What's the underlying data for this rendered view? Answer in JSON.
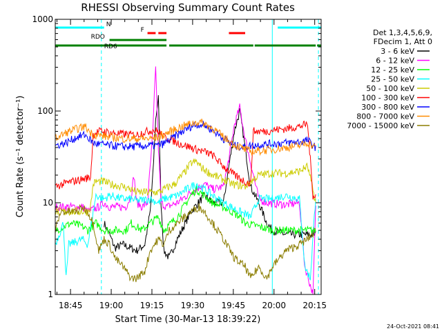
{
  "chart_data": {
    "type": "line",
    "title": "RHESSI Observing Summary Count Rates",
    "xlabel": "Start Time (30-Mar-13 18:39:22)",
    "ylabel": "Count Rate (s⁻¹ detector⁻¹)",
    "ylim": [
      1,
      1000
    ],
    "yscale": "log",
    "x_range_minutes": [
      0,
      98
    ],
    "x_ticks": [
      {
        "minute": 5.63,
        "label": "18:45"
      },
      {
        "minute": 20.63,
        "label": "19:00"
      },
      {
        "minute": 35.63,
        "label": "19:15"
      },
      {
        "minute": 50.63,
        "label": "19:30"
      },
      {
        "minute": 65.63,
        "label": "19:45"
      },
      {
        "minute": 80.63,
        "label": "20:00"
      },
      {
        "minute": 95.63,
        "label": "20:15"
      }
    ],
    "y_ticks": [
      {
        "value": 1,
        "label": "1"
      },
      {
        "value": 10,
        "label": "10"
      },
      {
        "value": 100,
        "label": "100"
      },
      {
        "value": 1000,
        "label": "1000"
      }
    ],
    "legend": {
      "position": "right",
      "header": [
        "Det 1,3,4,5,6,9,",
        "FDecim 1, Att 0"
      ],
      "entries": [
        {
          "label": "3 - 6 keV",
          "color": "#000000"
        },
        {
          "label": "6 - 12 keV",
          "color": "#ff00ff"
        },
        {
          "label": "12 - 25 keV",
          "color": "#00ff00"
        },
        {
          "label": "25 - 50 keV",
          "color": "#00ffff"
        },
        {
          "label": "50 - 100 keV",
          "color": "#cccc00"
        },
        {
          "label": "100 - 300 keV",
          "color": "#ff0000"
        },
        {
          "label": "300 - 800 keV",
          "color": "#0000ff"
        },
        {
          "label": "800 - 7000 keV",
          "color": "#ff8c00"
        },
        {
          "label": "7000 - 15000 keV",
          "color": "#8b7d00"
        }
      ]
    },
    "series": [
      {
        "name": "3 - 6 keV",
        "color": "#000000",
        "points": [
          [
            18,
            6
          ],
          [
            20,
            4.5
          ],
          [
            22,
            3.2
          ],
          [
            25,
            3.5
          ],
          [
            30,
            3
          ],
          [
            33,
            3.5
          ],
          [
            35,
            8
          ],
          [
            36,
            20
          ],
          [
            37,
            80
          ],
          [
            38,
            140
          ],
          [
            39,
            10
          ],
          [
            40,
            3
          ],
          [
            42,
            2.5
          ],
          [
            45,
            4
          ],
          [
            50,
            8
          ],
          [
            55,
            12
          ],
          [
            58,
            10
          ],
          [
            62,
            10
          ],
          [
            64,
            25
          ],
          [
            66,
            60
          ],
          [
            68,
            100
          ],
          [
            70,
            40
          ],
          [
            72,
            15
          ],
          [
            75,
            10
          ],
          [
            78,
            6
          ],
          [
            80,
            5
          ],
          [
            85,
            4.5
          ],
          [
            92,
            4.5
          ],
          [
            96,
            4.5
          ]
        ]
      },
      {
        "name": "6 - 12 keV",
        "color": "#ff00ff",
        "points": [
          [
            0,
            9
          ],
          [
            10,
            9
          ],
          [
            12,
            8
          ],
          [
            16,
            9
          ],
          [
            18,
            10
          ],
          [
            20,
            9
          ],
          [
            26,
            9
          ],
          [
            28,
            12
          ],
          [
            29,
            20
          ],
          [
            30,
            10
          ],
          [
            32,
            9
          ],
          [
            34,
            10
          ],
          [
            36,
            60
          ],
          [
            37,
            320
          ],
          [
            38,
            40
          ],
          [
            39,
            10
          ],
          [
            41,
            9
          ],
          [
            45,
            10
          ],
          [
            50,
            13
          ],
          [
            55,
            16
          ],
          [
            58,
            14
          ],
          [
            62,
            15
          ],
          [
            64,
            30
          ],
          [
            66,
            70
          ],
          [
            68,
            110
          ],
          [
            70,
            50
          ],
          [
            73,
            20
          ],
          [
            75,
            11
          ],
          [
            78,
            10
          ],
          [
            85,
            9.5
          ],
          [
            90,
            10
          ],
          [
            92,
            2
          ],
          [
            95,
            1
          ],
          [
            96,
            9
          ]
        ]
      },
      {
        "name": "12 - 25 keV",
        "color": "#00ff00",
        "points": [
          [
            0,
            5
          ],
          [
            6,
            6
          ],
          [
            10,
            5.5
          ],
          [
            12,
            5
          ],
          [
            15,
            6
          ],
          [
            18,
            5
          ],
          [
            20,
            5
          ],
          [
            26,
            5
          ],
          [
            28,
            6
          ],
          [
            32,
            5
          ],
          [
            35,
            6
          ],
          [
            38,
            7
          ],
          [
            40,
            5
          ],
          [
            45,
            7
          ],
          [
            50,
            12
          ],
          [
            52,
            14
          ],
          [
            55,
            12
          ],
          [
            58,
            10
          ],
          [
            62,
            9
          ],
          [
            65,
            8
          ],
          [
            68,
            7
          ],
          [
            70,
            6
          ],
          [
            75,
            5.5
          ],
          [
            80,
            5
          ],
          [
            85,
            5
          ],
          [
            92,
            5
          ],
          [
            96,
            5
          ]
        ]
      },
      {
        "name": "25 - 50 keV",
        "color": "#00ffff",
        "points": [
          [
            0,
            3.5
          ],
          [
            3,
            6
          ],
          [
            4,
            1.5
          ],
          [
            5,
            3.5
          ],
          [
            8,
            3.8
          ],
          [
            10,
            4
          ],
          [
            12,
            3.5
          ],
          [
            15,
            12
          ],
          [
            18,
            11
          ],
          [
            20,
            12
          ],
          [
            25,
            11
          ],
          [
            28,
            11
          ],
          [
            30,
            10.5
          ],
          [
            35,
            11
          ],
          [
            38,
            10
          ],
          [
            40,
            11
          ],
          [
            45,
            12
          ],
          [
            50,
            15
          ],
          [
            52,
            16
          ],
          [
            55,
            14
          ],
          [
            58,
            12
          ],
          [
            62,
            10
          ],
          [
            68,
            8
          ],
          [
            72,
            7
          ],
          [
            75,
            11
          ],
          [
            80,
            11
          ],
          [
            85,
            12
          ],
          [
            90,
            11
          ],
          [
            92,
            2
          ],
          [
            94,
            1.5
          ],
          [
            96,
            12
          ]
        ]
      },
      {
        "name": "50 - 100 keV",
        "color": "#cccc00",
        "points": [
          [
            0,
            8
          ],
          [
            10,
            8
          ],
          [
            12,
            8
          ],
          [
            13,
            9
          ],
          [
            14,
            16
          ],
          [
            15,
            17
          ],
          [
            18,
            17
          ],
          [
            20,
            16
          ],
          [
            25,
            15
          ],
          [
            28,
            14
          ],
          [
            30,
            13
          ],
          [
            35,
            13
          ],
          [
            38,
            13
          ],
          [
            40,
            14
          ],
          [
            44,
            16
          ],
          [
            48,
            22
          ],
          [
            50,
            27
          ],
          [
            52,
            28
          ],
          [
            54,
            24
          ],
          [
            58,
            20
          ],
          [
            62,
            18
          ],
          [
            65,
            16
          ],
          [
            70,
            15
          ],
          [
            75,
            20
          ],
          [
            80,
            21
          ],
          [
            85,
            21
          ],
          [
            90,
            22
          ],
          [
            93,
            25
          ],
          [
            96,
            10
          ]
        ]
      },
      {
        "name": "100 - 300 keV",
        "color": "#ff0000",
        "points": [
          [
            0,
            15
          ],
          [
            6,
            17
          ],
          [
            10,
            18
          ],
          [
            13,
            19
          ],
          [
            14,
            55
          ],
          [
            16,
            60
          ],
          [
            18,
            60
          ],
          [
            20,
            58
          ],
          [
            25,
            56
          ],
          [
            28,
            55
          ],
          [
            30,
            55
          ],
          [
            32,
            58
          ],
          [
            34,
            60
          ],
          [
            36,
            62
          ],
          [
            38,
            60
          ],
          [
            40,
            52
          ],
          [
            42,
            50
          ],
          [
            45,
            45
          ],
          [
            48,
            42
          ],
          [
            50,
            40
          ],
          [
            52,
            38
          ],
          [
            55,
            36
          ],
          [
            58,
            33
          ],
          [
            62,
            25
          ],
          [
            66,
            20
          ],
          [
            70,
            17
          ],
          [
            72,
            16
          ],
          [
            73,
            60
          ],
          [
            78,
            60
          ],
          [
            80,
            62
          ],
          [
            85,
            64
          ],
          [
            90,
            68
          ],
          [
            93,
            72
          ],
          [
            95,
            12
          ],
          [
            96,
            12
          ]
        ]
      },
      {
        "name": "300 - 800 keV",
        "color": "#0000ff",
        "points": [
          [
            0,
            42
          ],
          [
            4,
            45
          ],
          [
            8,
            52
          ],
          [
            11,
            55
          ],
          [
            13,
            48
          ],
          [
            14,
            45
          ],
          [
            15,
            44
          ],
          [
            18,
            43
          ],
          [
            20,
            42
          ],
          [
            25,
            41
          ],
          [
            30,
            41
          ],
          [
            35,
            42
          ],
          [
            38,
            42
          ],
          [
            40,
            44
          ],
          [
            45,
            55
          ],
          [
            50,
            68
          ],
          [
            53,
            72
          ],
          [
            55,
            70
          ],
          [
            58,
            62
          ],
          [
            62,
            50
          ],
          [
            66,
            42
          ],
          [
            70,
            40
          ],
          [
            72,
            42
          ],
          [
            76,
            43
          ],
          [
            80,
            44
          ],
          [
            85,
            45
          ],
          [
            90,
            46
          ],
          [
            93,
            48
          ],
          [
            96,
            40
          ]
        ]
      },
      {
        "name": "800 - 7000 keV",
        "color": "#ff8c00",
        "points": [
          [
            0,
            50
          ],
          [
            4,
            58
          ],
          [
            8,
            64
          ],
          [
            11,
            68
          ],
          [
            13,
            58
          ],
          [
            15,
            55
          ],
          [
            20,
            52
          ],
          [
            25,
            50
          ],
          [
            30,
            50
          ],
          [
            35,
            50
          ],
          [
            38,
            52
          ],
          [
            40,
            55
          ],
          [
            45,
            65
          ],
          [
            50,
            73
          ],
          [
            53,
            76
          ],
          [
            55,
            73
          ],
          [
            58,
            65
          ],
          [
            62,
            52
          ],
          [
            66,
            43
          ],
          [
            70,
            38
          ],
          [
            72,
            36
          ],
          [
            76,
            37
          ],
          [
            80,
            38
          ],
          [
            85,
            40
          ],
          [
            90,
            42
          ],
          [
            93,
            45
          ],
          [
            96,
            40
          ]
        ]
      },
      {
        "name": "7000 - 15000 keV",
        "color": "#8b7d00",
        "points": [
          [
            0,
            5
          ],
          [
            2,
            8
          ],
          [
            8,
            8
          ],
          [
            10,
            9
          ],
          [
            12,
            8
          ],
          [
            14,
            6
          ],
          [
            16,
            3
          ],
          [
            18,
            4
          ],
          [
            20,
            3.5
          ],
          [
            22,
            2.5
          ],
          [
            25,
            2
          ],
          [
            28,
            1.5
          ],
          [
            30,
            1.5
          ],
          [
            33,
            1.8
          ],
          [
            35,
            3
          ],
          [
            38,
            4
          ],
          [
            40,
            3.5
          ],
          [
            42,
            5
          ],
          [
            45,
            6
          ],
          [
            50,
            8
          ],
          [
            53,
            9
          ],
          [
            55,
            8
          ],
          [
            58,
            6
          ],
          [
            62,
            4
          ],
          [
            66,
            2.5
          ],
          [
            70,
            2
          ],
          [
            72,
            1.5
          ],
          [
            75,
            2
          ],
          [
            78,
            1.5
          ],
          [
            80,
            2
          ],
          [
            85,
            3
          ],
          [
            90,
            3.5
          ],
          [
            93,
            4
          ],
          [
            96,
            5
          ]
        ]
      }
    ],
    "annotation_bars": [
      {
        "label": "N",
        "color": "#00ffff",
        "row": 0,
        "segments": [
          [
            0,
            18
          ]
        ]
      },
      {
        "label": "",
        "color": "#00ffff",
        "row": 0,
        "segments": [
          [
            82,
            98
          ]
        ]
      },
      {
        "label": "F",
        "color": "#ff0000",
        "row": 1,
        "segments": [
          [
            34,
            37
          ],
          [
            38,
            41
          ],
          [
            64,
            70
          ]
        ]
      },
      {
        "label": "RDO",
        "color": "#008000",
        "row": 2,
        "segments": [
          [
            20,
            41
          ]
        ]
      },
      {
        "label": "RD6",
        "color": "#008000",
        "row": 3,
        "segments": [
          [
            0,
            41
          ],
          [
            42,
            73
          ],
          [
            73.5,
            96
          ],
          [
            96.5,
            98
          ]
        ]
      }
    ],
    "vlines": [
      {
        "minute": 0,
        "color": "#00ffff",
        "style": "solid"
      },
      {
        "minute": 17,
        "color": "#00ffff",
        "style": "dashed"
      },
      {
        "minute": 80,
        "color": "#00ffff",
        "style": "solid"
      },
      {
        "minute": 97,
        "color": "#00ffff",
        "style": "dashed"
      }
    ]
  },
  "footer": {
    "timestamp": "24-Oct-2021 08:41"
  }
}
